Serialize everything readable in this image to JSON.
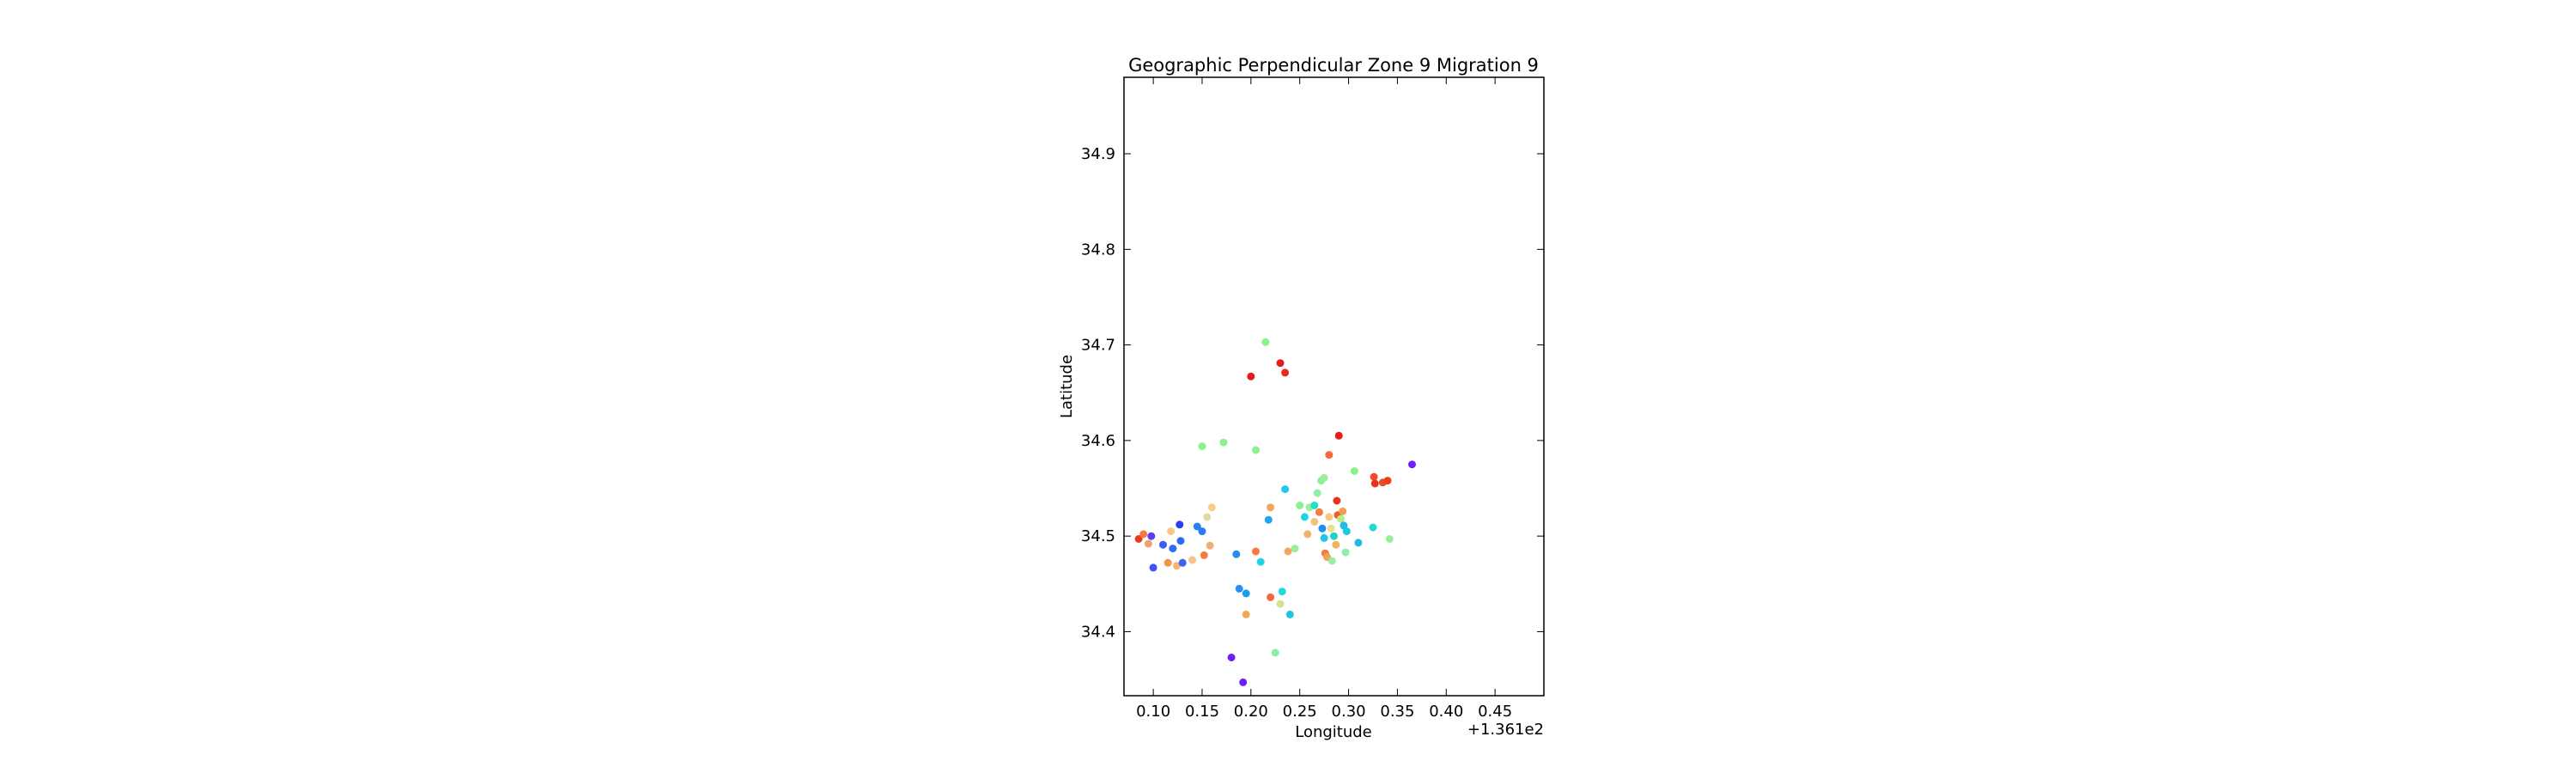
{
  "chart_data": {
    "type": "scatter",
    "title": "Geographic Perpendicular Zone 9 Migration 9",
    "xlabel": "Longitude",
    "ylabel": "Latitude",
    "x_offset_label": "+1.361e2",
    "xlim": [
      0.07,
      0.5
    ],
    "ylim": [
      34.333,
      34.98
    ],
    "x_ticks": [
      0.1,
      0.15,
      0.2,
      0.25,
      0.3,
      0.35,
      0.4,
      0.45
    ],
    "x_tick_labels": [
      "0.10",
      "0.15",
      "0.20",
      "0.25",
      "0.30",
      "0.35",
      "0.40",
      "0.45"
    ],
    "y_ticks": [
      34.4,
      34.5,
      34.6,
      34.7,
      34.8,
      34.9
    ],
    "y_tick_labels": [
      "34.4",
      "34.5",
      "34.6",
      "34.7",
      "34.8",
      "34.9"
    ],
    "grid": false,
    "legend": "none",
    "points": [
      {
        "x": 0.085,
        "y": 34.497,
        "color": "#e8391d"
      },
      {
        "x": 0.09,
        "y": 34.502,
        "color": "#f57a42"
      },
      {
        "x": 0.095,
        "y": 34.492,
        "color": "#f0a070"
      },
      {
        "x": 0.098,
        "y": 34.5,
        "color": "#5a3cf5"
      },
      {
        "x": 0.1,
        "y": 34.467,
        "color": "#3d52f7"
      },
      {
        "x": 0.11,
        "y": 34.491,
        "color": "#3a5ef5"
      },
      {
        "x": 0.115,
        "y": 34.472,
        "color": "#f0954d"
      },
      {
        "x": 0.118,
        "y": 34.505,
        "color": "#f5c78a"
      },
      {
        "x": 0.12,
        "y": 34.487,
        "color": "#2f6ef0"
      },
      {
        "x": 0.124,
        "y": 34.469,
        "color": "#f5b672"
      },
      {
        "x": 0.127,
        "y": 34.512,
        "color": "#2a3ff5"
      },
      {
        "x": 0.128,
        "y": 34.495,
        "color": "#2d6cf2"
      },
      {
        "x": 0.13,
        "y": 34.472,
        "color": "#3d62f0"
      },
      {
        "x": 0.14,
        "y": 34.475,
        "color": "#f7c28a"
      },
      {
        "x": 0.145,
        "y": 34.51,
        "color": "#2b80f0"
      },
      {
        "x": 0.15,
        "y": 34.505,
        "color": "#2e7cf5"
      },
      {
        "x": 0.152,
        "y": 34.48,
        "color": "#f57a42"
      },
      {
        "x": 0.155,
        "y": 34.52,
        "color": "#e8d89a"
      },
      {
        "x": 0.158,
        "y": 34.49,
        "color": "#f0b070"
      },
      {
        "x": 0.16,
        "y": 34.53,
        "color": "#f5d080"
      },
      {
        "x": 0.15,
        "y": 34.594,
        "color": "#8cf08c"
      },
      {
        "x": 0.172,
        "y": 34.598,
        "color": "#8cf08c"
      },
      {
        "x": 0.185,
        "y": 34.481,
        "color": "#1f8ef0"
      },
      {
        "x": 0.188,
        "y": 34.445,
        "color": "#2b8ef5"
      },
      {
        "x": 0.195,
        "y": 34.44,
        "color": "#1e9cf0"
      },
      {
        "x": 0.195,
        "y": 34.418,
        "color": "#f0a85a"
      },
      {
        "x": 0.18,
        "y": 34.373,
        "color": "#6f1ef5"
      },
      {
        "x": 0.192,
        "y": 34.347,
        "color": "#7020f5"
      },
      {
        "x": 0.2,
        "y": 34.667,
        "color": "#e81a1a"
      },
      {
        "x": 0.205,
        "y": 34.59,
        "color": "#8cf08c"
      },
      {
        "x": 0.205,
        "y": 34.484,
        "color": "#f57a42"
      },
      {
        "x": 0.21,
        "y": 34.473,
        "color": "#22d4e8"
      },
      {
        "x": 0.215,
        "y": 34.703,
        "color": "#8cf08c"
      },
      {
        "x": 0.218,
        "y": 34.517,
        "color": "#1ea6f0"
      },
      {
        "x": 0.22,
        "y": 34.53,
        "color": "#f5a45a"
      },
      {
        "x": 0.22,
        "y": 34.436,
        "color": "#f06a3a"
      },
      {
        "x": 0.225,
        "y": 34.378,
        "color": "#8cf0a0"
      },
      {
        "x": 0.23,
        "y": 34.681,
        "color": "#e81a1a"
      },
      {
        "x": 0.23,
        "y": 34.429,
        "color": "#d8e08a"
      },
      {
        "x": 0.232,
        "y": 34.442,
        "color": "#22d8e0"
      },
      {
        "x": 0.235,
        "y": 34.671,
        "color": "#e82a1a"
      },
      {
        "x": 0.235,
        "y": 34.549,
        "color": "#22c8f0"
      },
      {
        "x": 0.238,
        "y": 34.484,
        "color": "#f5a45a"
      },
      {
        "x": 0.24,
        "y": 34.418,
        "color": "#22c4e0"
      },
      {
        "x": 0.245,
        "y": 34.487,
        "color": "#9af09a"
      },
      {
        "x": 0.25,
        "y": 34.532,
        "color": "#8cf08c"
      },
      {
        "x": 0.255,
        "y": 34.52,
        "color": "#1ed0e8"
      },
      {
        "x": 0.258,
        "y": 34.502,
        "color": "#f0b070"
      },
      {
        "x": 0.26,
        "y": 34.53,
        "color": "#9af0a0"
      },
      {
        "x": 0.265,
        "y": 34.515,
        "color": "#f5c07a"
      },
      {
        "x": 0.265,
        "y": 34.532,
        "color": "#22e0c8"
      },
      {
        "x": 0.268,
        "y": 34.545,
        "color": "#8cf0b0"
      },
      {
        "x": 0.27,
        "y": 34.525,
        "color": "#f57a42"
      },
      {
        "x": 0.272,
        "y": 34.558,
        "color": "#8cf08c"
      },
      {
        "x": 0.273,
        "y": 34.508,
        "color": "#1e8ef0"
      },
      {
        "x": 0.275,
        "y": 34.498,
        "color": "#22c4e8"
      },
      {
        "x": 0.275,
        "y": 34.561,
        "color": "#9af09a"
      },
      {
        "x": 0.276,
        "y": 34.482,
        "color": "#f57a42"
      },
      {
        "x": 0.278,
        "y": 34.478,
        "color": "#f0a05a"
      },
      {
        "x": 0.28,
        "y": 34.52,
        "color": "#f5c880"
      },
      {
        "x": 0.28,
        "y": 34.585,
        "color": "#f56a3a"
      },
      {
        "x": 0.282,
        "y": 34.508,
        "color": "#e8e08a"
      },
      {
        "x": 0.283,
        "y": 34.474,
        "color": "#9af09a"
      },
      {
        "x": 0.285,
        "y": 34.5,
        "color": "#22d0c8"
      },
      {
        "x": 0.287,
        "y": 34.491,
        "color": "#f5b060"
      },
      {
        "x": 0.288,
        "y": 34.537,
        "color": "#e8301a"
      },
      {
        "x": 0.289,
        "y": 34.522,
        "color": "#f05a2a"
      },
      {
        "x": 0.29,
        "y": 34.605,
        "color": "#e81a1a"
      },
      {
        "x": 0.292,
        "y": 34.518,
        "color": "#b0f080"
      },
      {
        "x": 0.294,
        "y": 34.526,
        "color": "#f0a050"
      },
      {
        "x": 0.295,
        "y": 34.511,
        "color": "#22b8e8"
      },
      {
        "x": 0.298,
        "y": 34.505,
        "color": "#1ec8e0"
      },
      {
        "x": 0.297,
        "y": 34.483,
        "color": "#8cf0b0"
      },
      {
        "x": 0.306,
        "y": 34.568,
        "color": "#8cf08c"
      },
      {
        "x": 0.31,
        "y": 34.493,
        "color": "#22b8e8"
      },
      {
        "x": 0.325,
        "y": 34.509,
        "color": "#22d8d0"
      },
      {
        "x": 0.326,
        "y": 34.562,
        "color": "#f04a2a"
      },
      {
        "x": 0.327,
        "y": 34.555,
        "color": "#e8301a"
      },
      {
        "x": 0.335,
        "y": 34.556,
        "color": "#e84a2a"
      },
      {
        "x": 0.34,
        "y": 34.558,
        "color": "#e8401a"
      },
      {
        "x": 0.342,
        "y": 34.497,
        "color": "#9af09a"
      },
      {
        "x": 0.365,
        "y": 34.575,
        "color": "#7020f5"
      }
    ]
  }
}
